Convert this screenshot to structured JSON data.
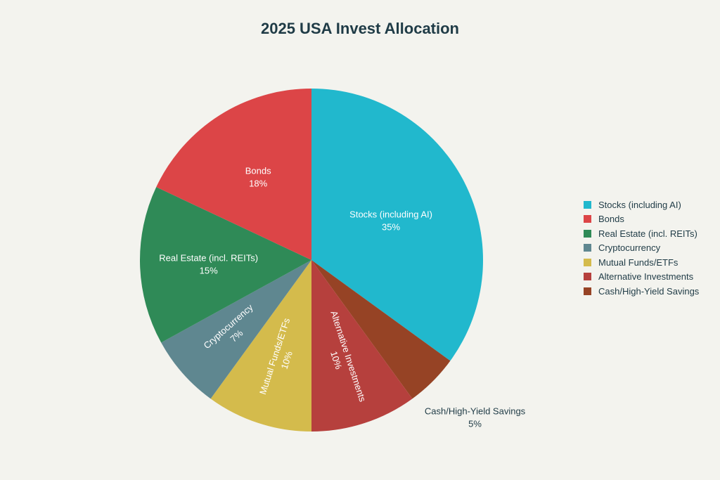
{
  "chart_data": {
    "type": "pie",
    "title": "2025 USA Invest Allocation",
    "slices": [
      {
        "label": "Stocks (including AI)",
        "value": 35,
        "percent_label": "35%",
        "color": "#21b8cd"
      },
      {
        "label": "Cash/High-Yield Savings",
        "value": 5,
        "percent_label": "5%",
        "color": "#964325"
      },
      {
        "label": "Alternative Investments",
        "value": 10,
        "percent_label": "10%",
        "color": "#b6403d"
      },
      {
        "label": "Mutual Funds/ETFs",
        "value": 10,
        "percent_label": "10%",
        "color": "#d4bb4c"
      },
      {
        "label": "Cryptocurrency",
        "value": 7,
        "percent_label": "7%",
        "color": "#5f8790"
      },
      {
        "label": "Real Estate (incl. REITs)",
        "value": 15,
        "percent_label": "15%",
        "color": "#2f8a57"
      },
      {
        "label": "Bonds",
        "value": 18,
        "percent_label": "18%",
        "color": "#dc4547"
      }
    ],
    "legend": [
      {
        "label": "Stocks (including AI)",
        "color": "#21b8cd"
      },
      {
        "label": "Bonds",
        "color": "#dc4547"
      },
      {
        "label": "Real Estate (incl. REITs)",
        "color": "#2f8a57"
      },
      {
        "label": "Cryptocurrency",
        "color": "#5f8790"
      },
      {
        "label": "Mutual Funds/ETFs",
        "color": "#d4bb4c"
      },
      {
        "label": "Alternative Investments",
        "color": "#b6403d"
      },
      {
        "label": "Cash/High-Yield Savings",
        "color": "#964325"
      }
    ],
    "legend_position": "right"
  }
}
